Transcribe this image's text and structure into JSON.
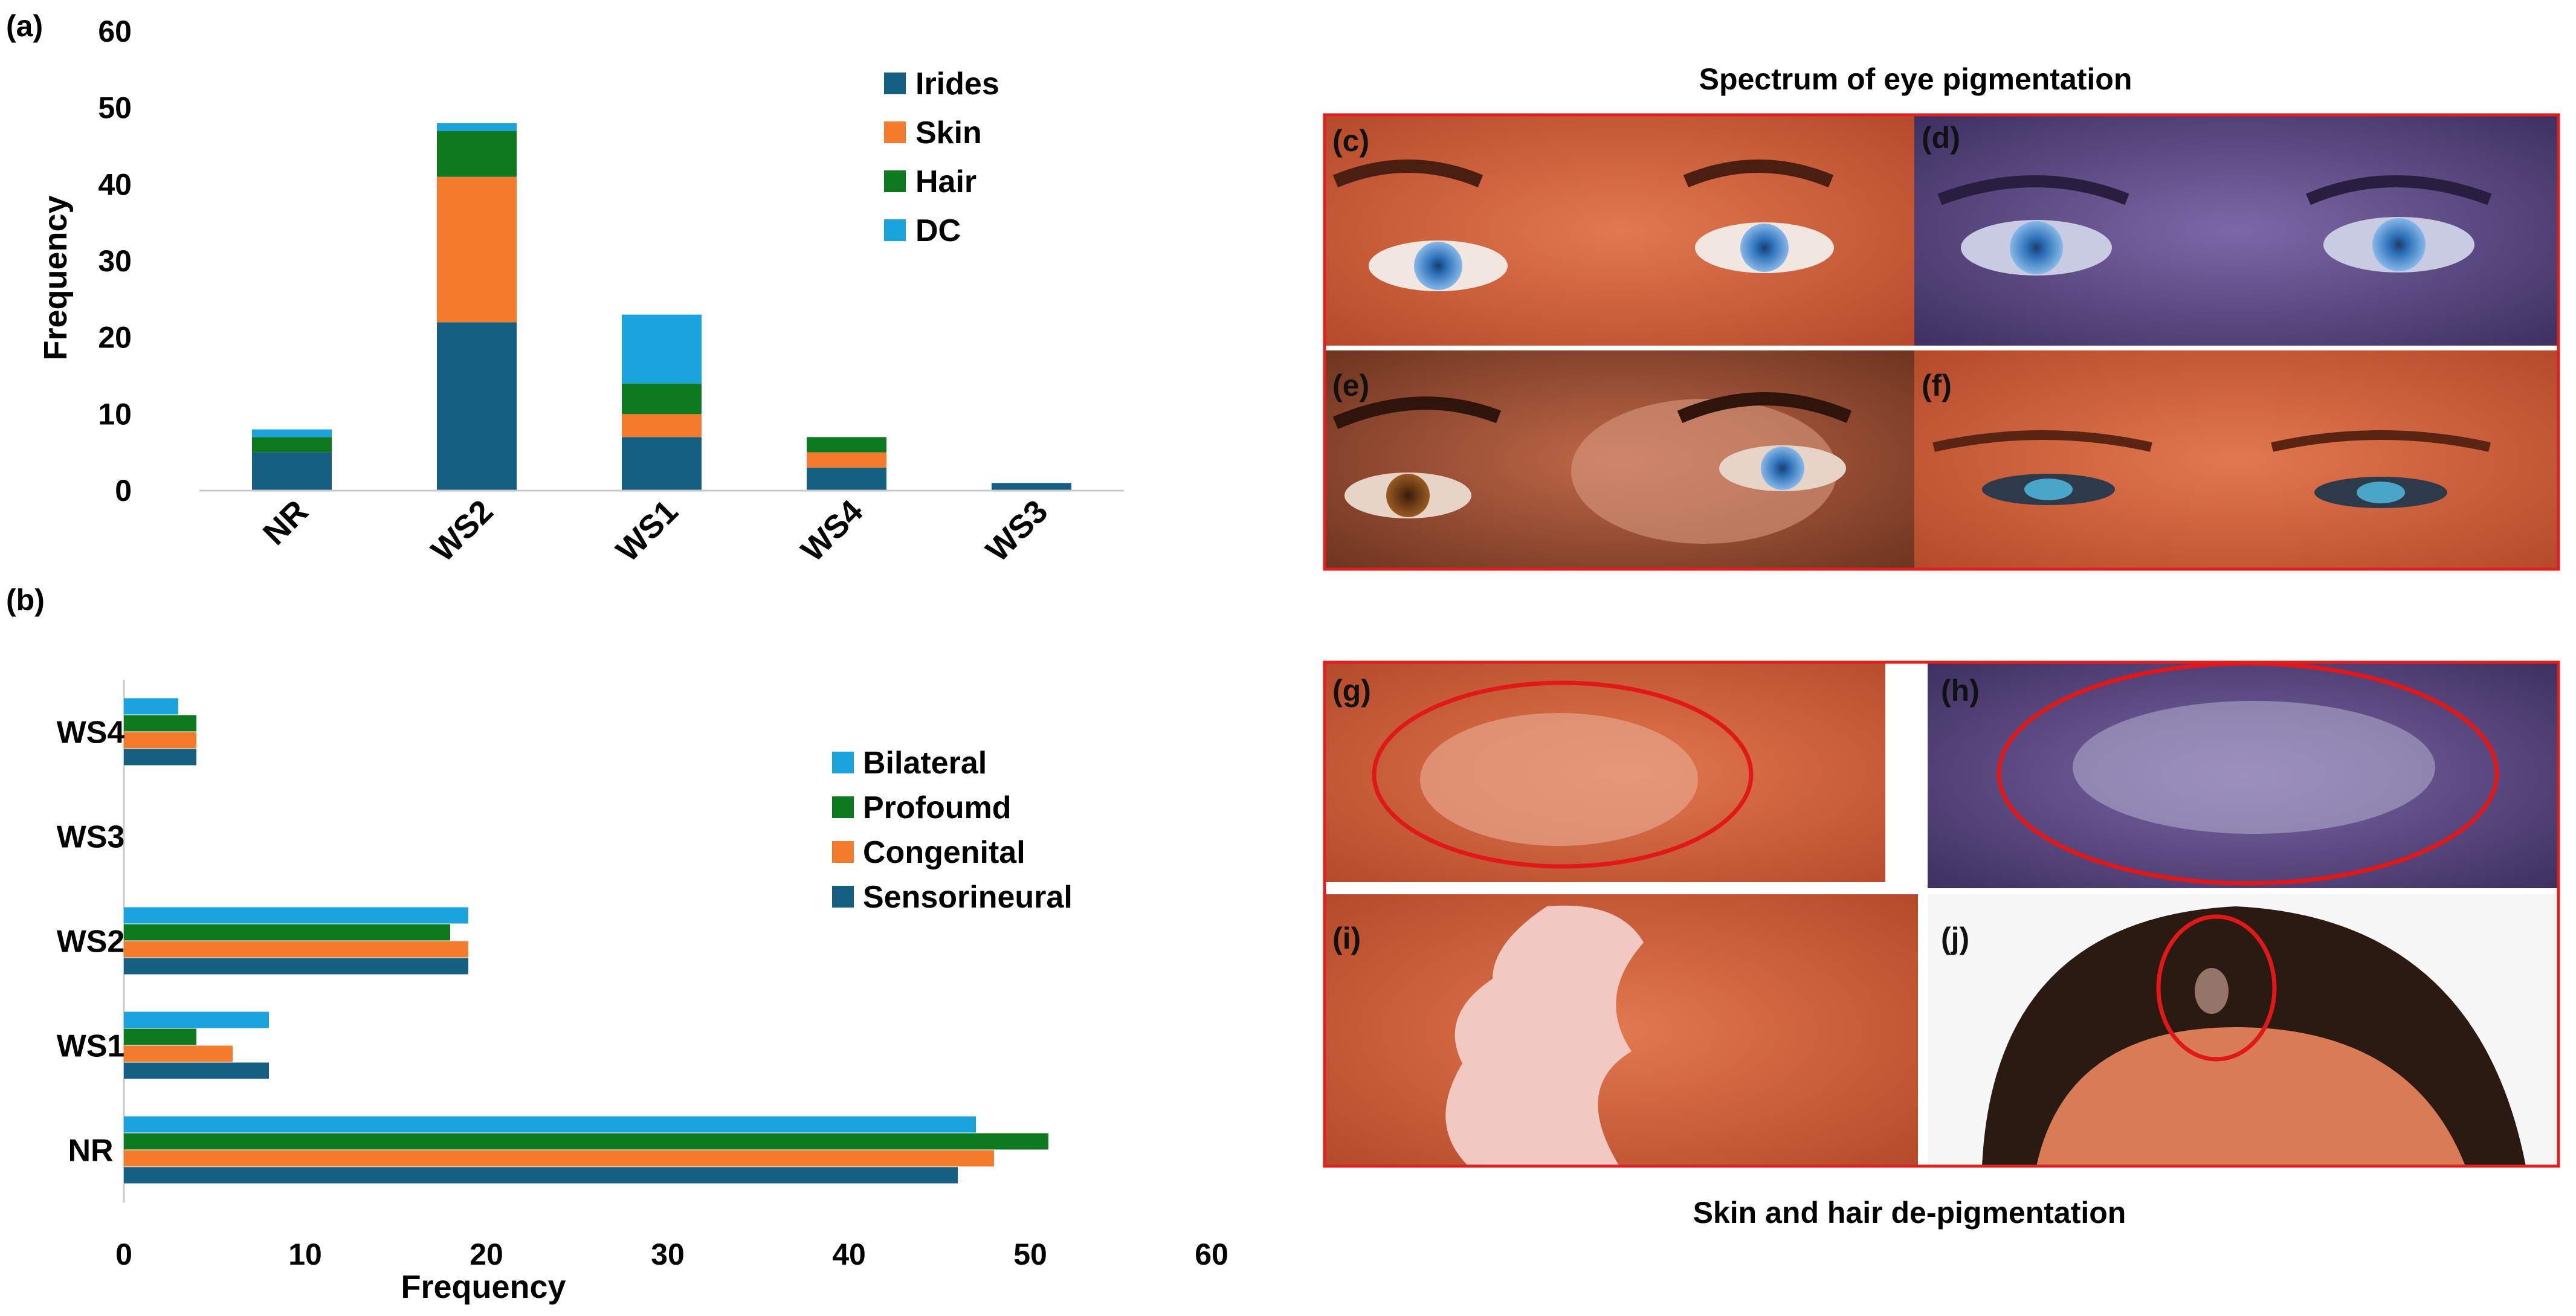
{
  "panel_labels": {
    "a": "(a)",
    "b": "(b)"
  },
  "photo_panels": {
    "eye_title": "Spectrum of eye pigmentation",
    "skin_title": "Skin and hair de-pigmentation",
    "labels": [
      "(c)",
      "(d)",
      "(e)",
      "(f)",
      "(g)",
      "(h)",
      "(i)",
      "(j)"
    ]
  },
  "chart_data": [
    {
      "type": "bar",
      "stacked": true,
      "orientation": "vertical",
      "ylabel": "Frequency",
      "xlabel": "",
      "ylim": [
        0,
        60
      ],
      "yticks": [
        0,
        10,
        20,
        30,
        40,
        50,
        60
      ],
      "categories": [
        "NR",
        "WS2",
        "WS1",
        "WS4",
        "WS3"
      ],
      "series": [
        {
          "name": "Irides",
          "color": "#156082",
          "values": [
            5,
            22,
            7,
            3,
            1
          ]
        },
        {
          "name": "Skin",
          "color": "#F47A2C",
          "values": [
            0,
            19,
            3,
            2,
            0
          ]
        },
        {
          "name": "Hair",
          "color": "#0D7A20",
          "values": [
            2,
            6,
            4,
            2,
            0
          ]
        },
        {
          "name": "DC",
          "color": "#1AA3DC",
          "values": [
            1,
            1,
            9,
            0,
            0
          ]
        }
      ],
      "legend_position": "top-right"
    },
    {
      "type": "bar",
      "stacked": false,
      "orientation": "horizontal",
      "xlabel": "Frequency",
      "ylabel": "",
      "xlim": [
        0,
        60
      ],
      "xticks": [
        0,
        10,
        20,
        30,
        40,
        50,
        60
      ],
      "categories": [
        "WS4",
        "WS3",
        "WS2",
        "WS1",
        "NR"
      ],
      "series": [
        {
          "name": "Bilateral",
          "color": "#1AA3DC",
          "values": [
            3,
            0,
            19,
            8,
            47
          ]
        },
        {
          "name": "Profoumd",
          "color": "#0D7A20",
          "values": [
            4,
            0,
            18,
            4,
            51
          ]
        },
        {
          "name": "Congenital",
          "color": "#F47A2C",
          "values": [
            4,
            0,
            19,
            6,
            48
          ]
        },
        {
          "name": "Sensorineural",
          "color": "#156082",
          "values": [
            4,
            0,
            19,
            8,
            46
          ]
        }
      ],
      "legend_position": "right"
    }
  ]
}
